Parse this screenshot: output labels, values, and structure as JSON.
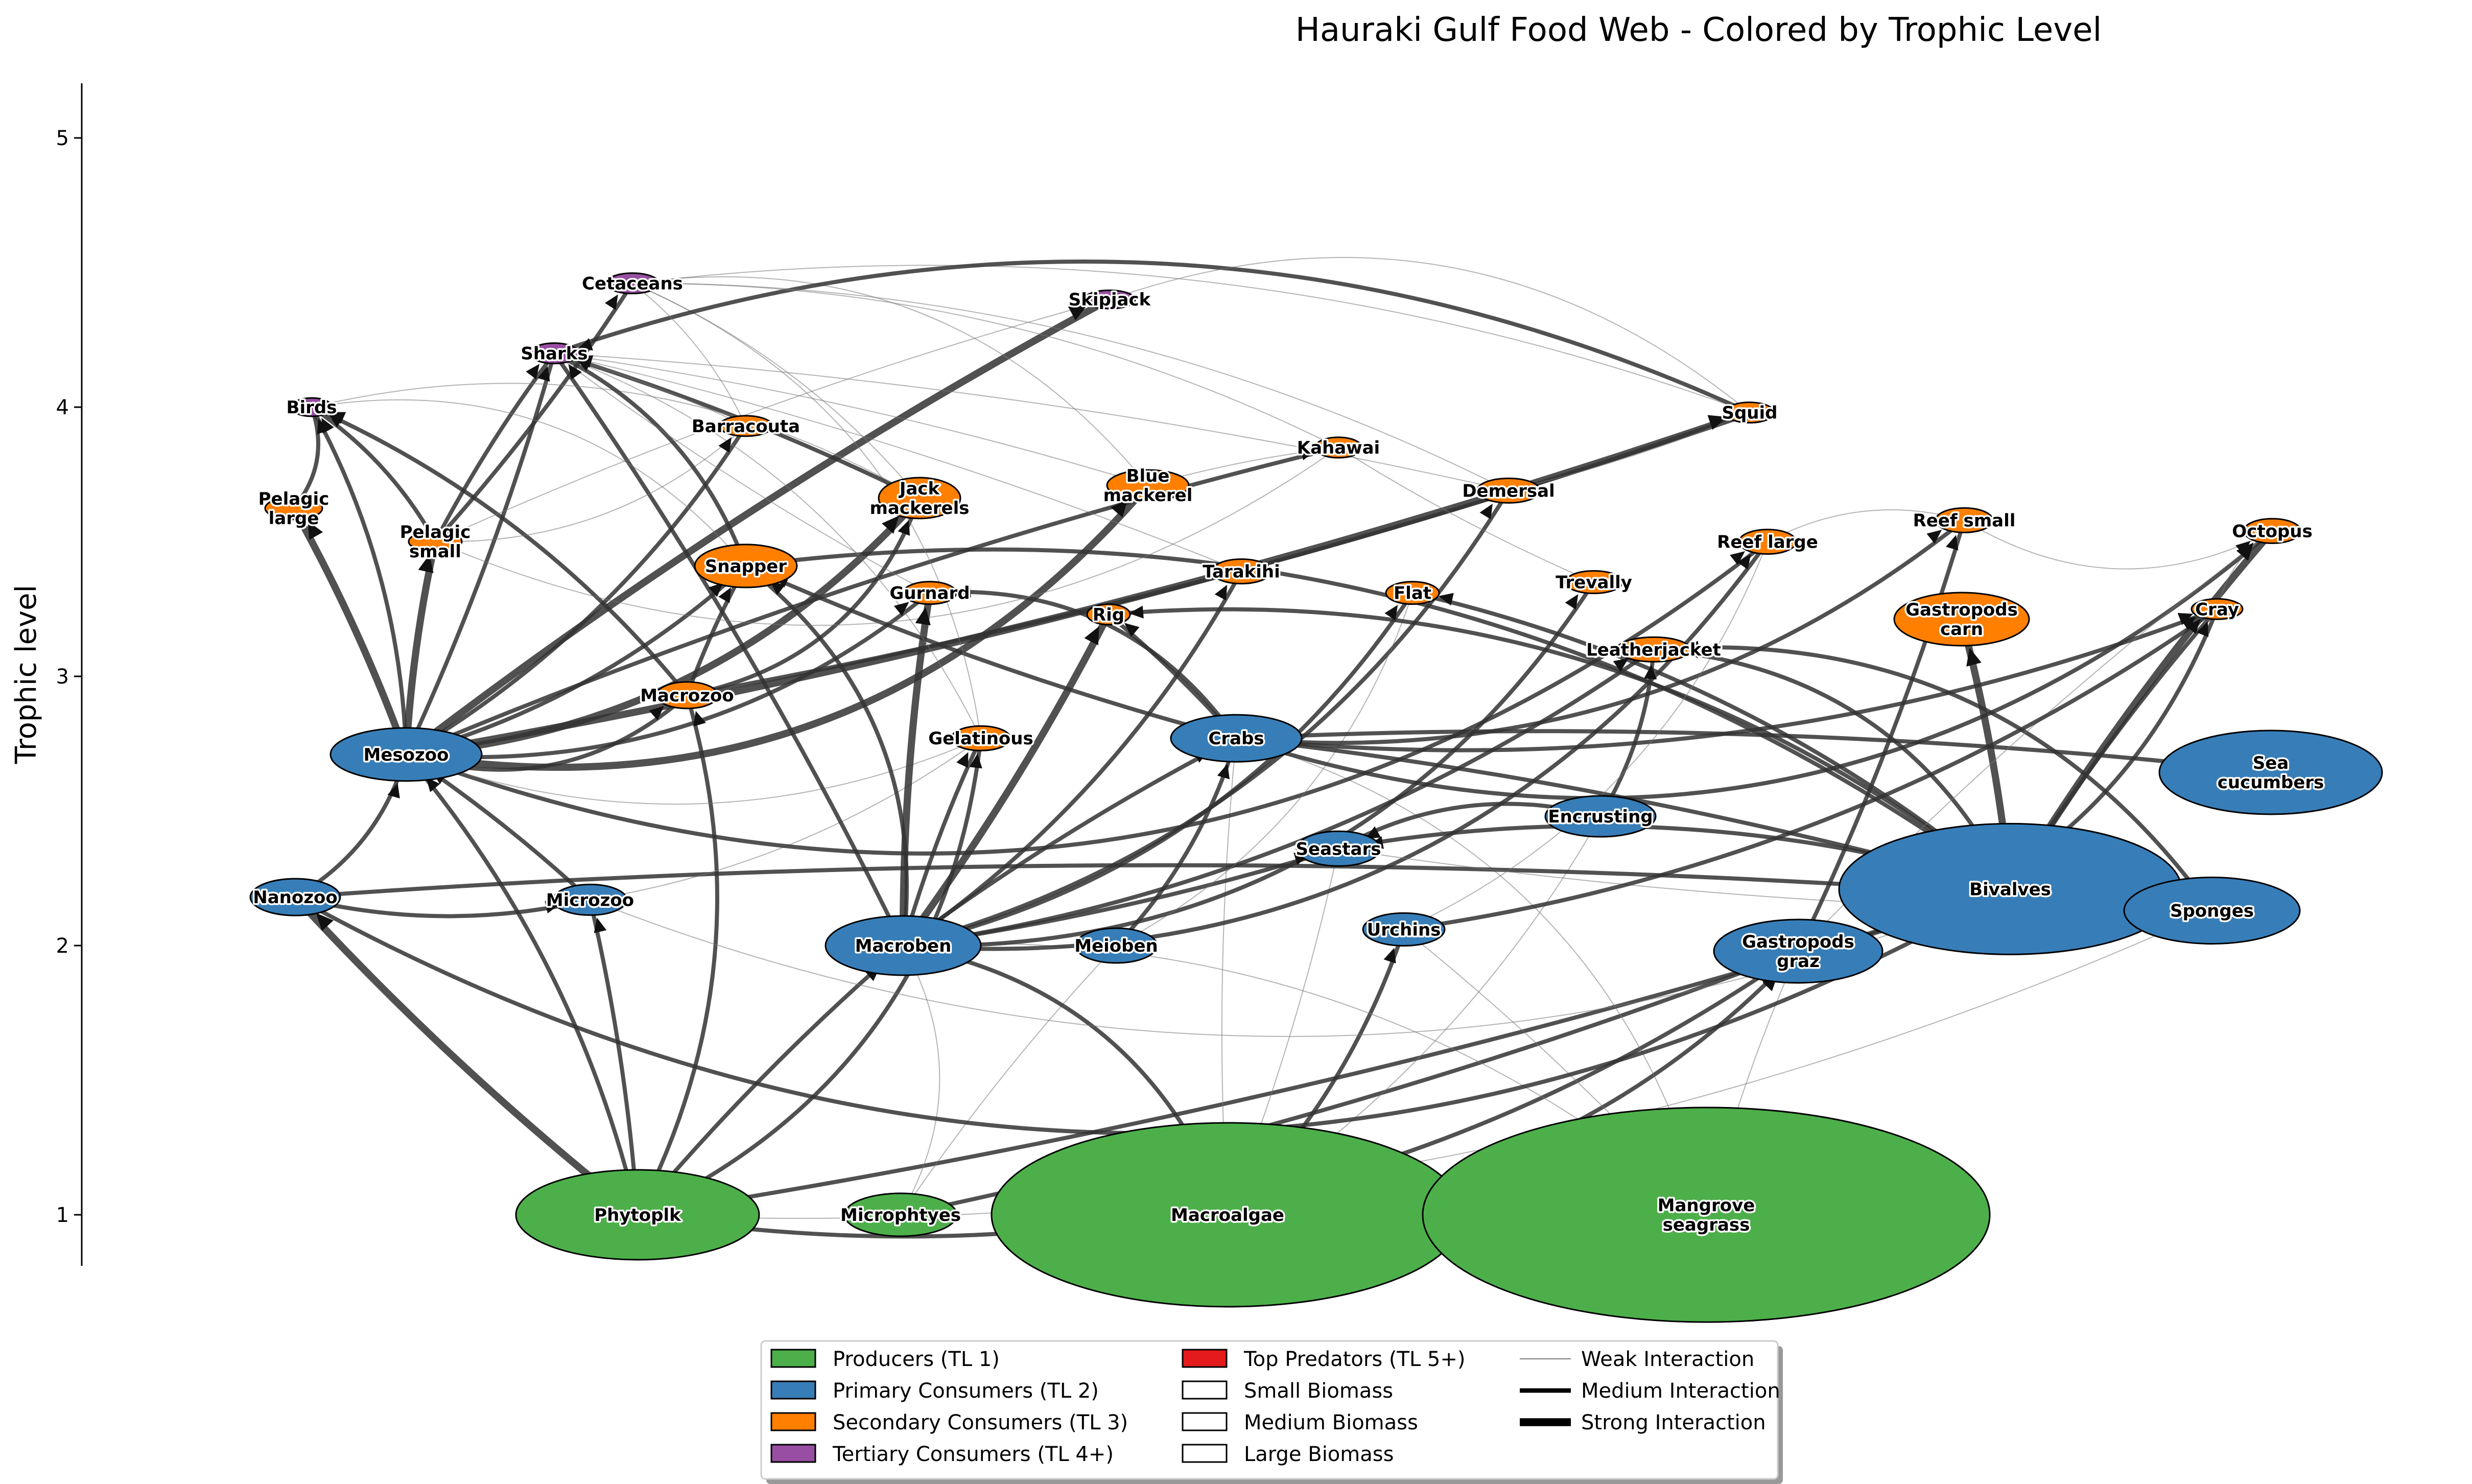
{
  "title": "Hauraki Gulf Food Web - Colored by Trophic Level",
  "y_axis": {
    "label": "Trophic level",
    "ticks": [
      1,
      2,
      3,
      4,
      5
    ],
    "ylim": [
      0.8,
      5.2
    ]
  },
  "colors": {
    "producers": "#4daf4a",
    "primary": "#377eb8",
    "secondary": "#ff7f00",
    "tertiary": "#984ea3",
    "top": "#e41a1c",
    "edge": "#333333"
  },
  "chart_data": {
    "type": "network",
    "nodes": [
      {
        "id": "phytoplk",
        "label": "Phytoplk",
        "tl": 1.0,
        "group": "producers",
        "size": "large"
      },
      {
        "id": "microphytes",
        "label": "Microphtyes",
        "tl": 1.0,
        "group": "producers",
        "size": "small"
      },
      {
        "id": "macroalgae",
        "label": "Macroalgae",
        "tl": 1.0,
        "group": "producers",
        "size": "large"
      },
      {
        "id": "mangrove",
        "label": "Mangrove\nseagrass",
        "tl": 1.0,
        "group": "producers",
        "size": "large"
      },
      {
        "id": "nanozoo",
        "label": "Nanozoo",
        "tl": 2.18,
        "group": "primary",
        "size": "small"
      },
      {
        "id": "microzoo",
        "label": "Microzoo",
        "tl": 2.17,
        "group": "primary",
        "size": "small"
      },
      {
        "id": "mesozoo",
        "label": "Mesozoo",
        "tl": 2.71,
        "group": "primary",
        "size": "medium"
      },
      {
        "id": "macroben",
        "label": "Macroben",
        "tl": 2.0,
        "group": "primary",
        "size": "medium"
      },
      {
        "id": "meioben",
        "label": "Meioben",
        "tl": 2.0,
        "group": "primary",
        "size": "small"
      },
      {
        "id": "crabs",
        "label": "Crabs",
        "tl": 2.77,
        "group": "primary",
        "size": "medium"
      },
      {
        "id": "seastars",
        "label": "Seastars",
        "tl": 2.36,
        "group": "primary",
        "size": "small"
      },
      {
        "id": "urchins",
        "label": "Urchins",
        "tl": 2.06,
        "group": "primary",
        "size": "small"
      },
      {
        "id": "encrusting",
        "label": "Encrusting",
        "tl": 2.48,
        "group": "primary",
        "size": "small"
      },
      {
        "id": "gastropods_graz",
        "label": "Gastropods\ngraz",
        "tl": 2.0,
        "group": "primary",
        "size": "medium"
      },
      {
        "id": "bivalves",
        "label": "Bivalves",
        "tl": 2.21,
        "group": "primary",
        "size": "large"
      },
      {
        "id": "sponges",
        "label": "Sponges",
        "tl": 2.13,
        "group": "primary",
        "size": "medium"
      },
      {
        "id": "sea_cucumbers",
        "label": "Sea\ncucumbers",
        "tl": 2.66,
        "group": "primary",
        "size": "medium"
      },
      {
        "id": "macrozoo",
        "label": "Macrozoo",
        "tl": 2.93,
        "group": "secondary",
        "size": "small"
      },
      {
        "id": "gelatinous",
        "label": "Gelatinous",
        "tl": 2.77,
        "group": "secondary",
        "size": "small"
      },
      {
        "id": "snapper",
        "label": "Snapper",
        "tl": 3.41,
        "group": "secondary",
        "size": "medium"
      },
      {
        "id": "gurnard",
        "label": "Gurnard",
        "tl": 3.31,
        "group": "secondary",
        "size": "small"
      },
      {
        "id": "rig",
        "label": "Rig",
        "tl": 3.23,
        "group": "secondary",
        "size": "small"
      },
      {
        "id": "tarakihi",
        "label": "Tarakihi",
        "tl": 3.39,
        "group": "secondary",
        "size": "small"
      },
      {
        "id": "flat",
        "label": "Flat",
        "tl": 3.31,
        "group": "secondary",
        "size": "small"
      },
      {
        "id": "trevally",
        "label": "Trevally",
        "tl": 3.35,
        "group": "secondary",
        "size": "small"
      },
      {
        "id": "leatherjacket",
        "label": "Leatherjacket",
        "tl": 3.1,
        "group": "secondary",
        "size": "small"
      },
      {
        "id": "reef_large",
        "label": "Reef large",
        "tl": 3.5,
        "group": "secondary",
        "size": "small"
      },
      {
        "id": "reef_small",
        "label": "Reef small",
        "tl": 3.58,
        "group": "secondary",
        "size": "small"
      },
      {
        "id": "octopus",
        "label": "Octopus",
        "tl": 3.54,
        "group": "secondary",
        "size": "small"
      },
      {
        "id": "cray",
        "label": "Cray",
        "tl": 3.25,
        "group": "secondary",
        "size": "small"
      },
      {
        "id": "gastropods_carn",
        "label": "Gastropods\ncarn",
        "tl": 3.22,
        "group": "secondary",
        "size": "medium"
      },
      {
        "id": "jack_mackerels",
        "label": "Jack\nmackerels",
        "tl": 3.7,
        "group": "secondary",
        "size": "medium"
      },
      {
        "id": "blue_mackerel",
        "label": "Blue\nmackerel",
        "tl": 3.74,
        "group": "secondary",
        "size": "medium"
      },
      {
        "id": "demersal",
        "label": "Demersal",
        "tl": 3.69,
        "group": "secondary",
        "size": "small"
      },
      {
        "id": "kahawai",
        "label": "Kahawai",
        "tl": 3.85,
        "group": "secondary",
        "size": "small"
      },
      {
        "id": "barracouta",
        "label": "Barracouta",
        "tl": 3.93,
        "group": "secondary",
        "size": "small"
      },
      {
        "id": "squid",
        "label": "Squid",
        "tl": 3.98,
        "group": "secondary",
        "size": "small"
      },
      {
        "id": "pelagic_small",
        "label": "Pelagic\nsmall",
        "tl": 3.5,
        "group": "secondary",
        "size": "small"
      },
      {
        "id": "pelagic_large",
        "label": "Pelagic\nlarge",
        "tl": 3.67,
        "group": "secondary",
        "size": "small"
      },
      {
        "id": "birds",
        "label": "Birds",
        "tl": 4.0,
        "group": "tertiary",
        "size": "small"
      },
      {
        "id": "sharks",
        "label": "Sharks",
        "tl": 4.2,
        "group": "tertiary",
        "size": "small"
      },
      {
        "id": "cetaceans",
        "label": "Cetaceans",
        "tl": 4.46,
        "group": "tertiary",
        "size": "small"
      },
      {
        "id": "skipjack",
        "label": "Skipjack",
        "tl": 4.4,
        "group": "tertiary",
        "size": "small"
      }
    ],
    "edges": [
      [
        "phytoplk",
        "nanozoo",
        "strong"
      ],
      [
        "phytoplk",
        "microzoo",
        "medium"
      ],
      [
        "phytoplk",
        "mesozoo",
        "medium"
      ],
      [
        "phytoplk",
        "macrozoo",
        "medium"
      ],
      [
        "phytoplk",
        "gelatinous",
        "medium"
      ],
      [
        "phytoplk",
        "macroben",
        "medium"
      ],
      [
        "phytoplk",
        "bivalves",
        "medium"
      ],
      [
        "phytoplk",
        "sponges",
        "weak"
      ],
      [
        "phytoplk",
        "gastropods_graz",
        "medium"
      ],
      [
        "microphytes",
        "macroben",
        "weak"
      ],
      [
        "microphytes",
        "meioben",
        "weak"
      ],
      [
        "microphytes",
        "gastropods_graz",
        "medium"
      ],
      [
        "macroalgae",
        "urchins",
        "medium"
      ],
      [
        "macroalgae",
        "gastropods_graz",
        "medium"
      ],
      [
        "macroalgae",
        "macroben",
        "medium"
      ],
      [
        "macroalgae",
        "crabs",
        "weak"
      ],
      [
        "macroalgae",
        "seastars",
        "weak"
      ],
      [
        "macroalgae",
        "encrusting",
        "weak"
      ],
      [
        "mangrove",
        "macroben",
        "weak"
      ],
      [
        "mangrove",
        "crabs",
        "weak"
      ],
      [
        "mangrove",
        "gastropods_graz",
        "weak"
      ],
      [
        "mangrove",
        "urchins",
        "weak"
      ],
      [
        "nanozoo",
        "microzoo",
        "medium"
      ],
      [
        "nanozoo",
        "mesozoo",
        "medium"
      ],
      [
        "nanozoo",
        "bivalves",
        "medium"
      ],
      [
        "nanozoo",
        "sponges",
        "medium"
      ],
      [
        "microzoo",
        "mesozoo",
        "medium"
      ],
      [
        "microzoo",
        "gelatinous",
        "weak"
      ],
      [
        "microzoo",
        "bivalves",
        "weak"
      ],
      [
        "mesozoo",
        "macrozoo",
        "medium"
      ],
      [
        "mesozoo",
        "pelagic_small",
        "strong"
      ],
      [
        "mesozoo",
        "pelagic_large",
        "strong"
      ],
      [
        "mesozoo",
        "birds",
        "medium"
      ],
      [
        "mesozoo",
        "jack_mackerels",
        "strong"
      ],
      [
        "mesozoo",
        "blue_mackerel",
        "strong"
      ],
      [
        "mesozoo",
        "skipjack",
        "strong"
      ],
      [
        "mesozoo",
        "squid",
        "strong"
      ],
      [
        "mesozoo",
        "snapper",
        "medium"
      ],
      [
        "mesozoo",
        "gurnard",
        "medium"
      ],
      [
        "mesozoo",
        "reef_large",
        "medium"
      ],
      [
        "mesozoo",
        "kahawai",
        "medium"
      ],
      [
        "mesozoo",
        "sharks",
        "medium"
      ],
      [
        "mesozoo",
        "barracouta",
        "medium"
      ],
      [
        "mesozoo",
        "gelatinous",
        "weak"
      ],
      [
        "macroben",
        "snapper",
        "medium"
      ],
      [
        "macroben",
        "gurnard",
        "strong"
      ],
      [
        "macroben",
        "rig",
        "strong"
      ],
      [
        "macroben",
        "tarakihi",
        "medium"
      ],
      [
        "macroben",
        "flat",
        "medium"
      ],
      [
        "macroben",
        "trevally",
        "medium"
      ],
      [
        "macroben",
        "crabs",
        "medium"
      ],
      [
        "macroben",
        "seastars",
        "medium"
      ],
      [
        "macroben",
        "leatherjacket",
        "medium"
      ],
      [
        "macroben",
        "demersal",
        "medium"
      ],
      [
        "macroben",
        "reef_large",
        "medium"
      ],
      [
        "macroben",
        "gelatinous",
        "medium"
      ],
      [
        "macroben",
        "sharks",
        "medium"
      ],
      [
        "meioben",
        "crabs",
        "medium"
      ],
      [
        "meioben",
        "flat",
        "weak"
      ],
      [
        "crabs",
        "octopus",
        "medium"
      ],
      [
        "crabs",
        "snapper",
        "medium"
      ],
      [
        "crabs",
        "rig",
        "medium"
      ],
      [
        "crabs",
        "cray",
        "medium"
      ],
      [
        "crabs",
        "reef_small",
        "medium"
      ],
      [
        "crabs",
        "gurnard",
        "medium"
      ],
      [
        "bivalves",
        "cray",
        "medium"
      ],
      [
        "bivalves",
        "gastropods_carn",
        "strong"
      ],
      [
        "bivalves",
        "seastars",
        "medium"
      ],
      [
        "bivalves",
        "snapper",
        "medium"
      ],
      [
        "bivalves",
        "leatherjacket",
        "medium"
      ],
      [
        "bivalves",
        "octopus",
        "strong"
      ],
      [
        "bivalves",
        "crabs",
        "medium"
      ],
      [
        "bivalves",
        "flat",
        "medium"
      ],
      [
        "bivalves",
        "rig",
        "medium"
      ],
      [
        "sponges",
        "leatherjacket",
        "medium"
      ],
      [
        "sponges",
        "seastars",
        "weak"
      ],
      [
        "sea_cucumbers",
        "crabs",
        "medium"
      ],
      [
        "encrusting",
        "leatherjacket",
        "medium"
      ],
      [
        "encrusting",
        "seastars",
        "medium"
      ],
      [
        "gastropods_graz",
        "cray",
        "medium"
      ],
      [
        "gastropods_graz",
        "octopus",
        "weak"
      ],
      [
        "gastropods_graz",
        "reef_small",
        "medium"
      ],
      [
        "urchins",
        "cray",
        "medium"
      ],
      [
        "urchins",
        "reef_large",
        "weak"
      ],
      [
        "macrozoo",
        "jack_mackerels",
        "medium"
      ],
      [
        "macrozoo",
        "snapper",
        "medium"
      ],
      [
        "macrozoo",
        "squid",
        "medium"
      ],
      [
        "macrozoo",
        "birds",
        "medium"
      ],
      [
        "gelatinous",
        "sharks",
        "weak"
      ],
      [
        "gelatinous",
        "cetaceans",
        "weak"
      ],
      [
        "pelagic_small",
        "sharks",
        "medium"
      ],
      [
        "pelagic_small",
        "cetaceans",
        "medium"
      ],
      [
        "pelagic_small",
        "birds",
        "medium"
      ],
      [
        "pelagic_small",
        "barracouta",
        "weak"
      ],
      [
        "pelagic_small",
        "kahawai",
        "weak"
      ],
      [
        "pelagic_small",
        "skipjack",
        "weak"
      ],
      [
        "jack_mackerels",
        "sharks",
        "medium"
      ],
      [
        "jack_mackerels",
        "cetaceans",
        "weak"
      ],
      [
        "jack_mackerels",
        "birds",
        "weak"
      ],
      [
        "blue_mackerel",
        "cetaceans",
        "weak"
      ],
      [
        "blue_mackerel",
        "kahawai",
        "weak"
      ],
      [
        "blue_mackerel",
        "sharks",
        "weak"
      ],
      [
        "squid",
        "cetaceans",
        "weak"
      ],
      [
        "squid",
        "sharks",
        "medium"
      ],
      [
        "squid",
        "skipjack",
        "weak"
      ],
      [
        "squid",
        "demersal",
        "weak"
      ],
      [
        "barracouta",
        "sharks",
        "weak"
      ],
      [
        "barracouta",
        "cetaceans",
        "weak"
      ],
      [
        "snapper",
        "sharks",
        "medium"
      ],
      [
        "snapper",
        "birds",
        "weak"
      ],
      [
        "gurnard",
        "sharks",
        "weak"
      ],
      [
        "demersal",
        "sharks",
        "weak"
      ],
      [
        "demersal",
        "cetaceans",
        "weak"
      ],
      [
        "reef_small",
        "reef_large",
        "weak"
      ],
      [
        "reef_small",
        "octopus",
        "weak"
      ],
      [
        "trevally",
        "kahawai",
        "weak"
      ],
      [
        "tarakihi",
        "sharks",
        "weak"
      ],
      [
        "kahawai",
        "cetaceans",
        "weak"
      ],
      [
        "octopus",
        "cray",
        "weak"
      ],
      [
        "pelagic_large",
        "birds",
        "medium"
      ]
    ]
  },
  "legend": [
    {
      "label": "Producers (TL 1)",
      "kind": "fill",
      "color": "#4daf4a"
    },
    {
      "label": "Primary Consumers (TL 2)",
      "kind": "fill",
      "color": "#377eb8"
    },
    {
      "label": "Secondary Consumers (TL 3)",
      "kind": "fill",
      "color": "#ff7f00"
    },
    {
      "label": "Tertiary Consumers (TL 4+)",
      "kind": "fill",
      "color": "#984ea3"
    },
    {
      "label": "Top Predators (TL 5+)",
      "kind": "fill",
      "color": "#e41a1c"
    },
    {
      "label": "Small Biomass",
      "kind": "fill",
      "color": "#ffffff"
    },
    {
      "label": "Medium Biomass",
      "kind": "fill",
      "color": "#ffffff"
    },
    {
      "label": "Large Biomass",
      "kind": "fill",
      "color": "#ffffff"
    },
    {
      "label": "Weak Interaction",
      "kind": "line",
      "weight": "weak"
    },
    {
      "label": "Medium Interaction",
      "kind": "line",
      "weight": "medium"
    },
    {
      "label": "Strong Interaction",
      "kind": "line",
      "weight": "strong"
    }
  ]
}
